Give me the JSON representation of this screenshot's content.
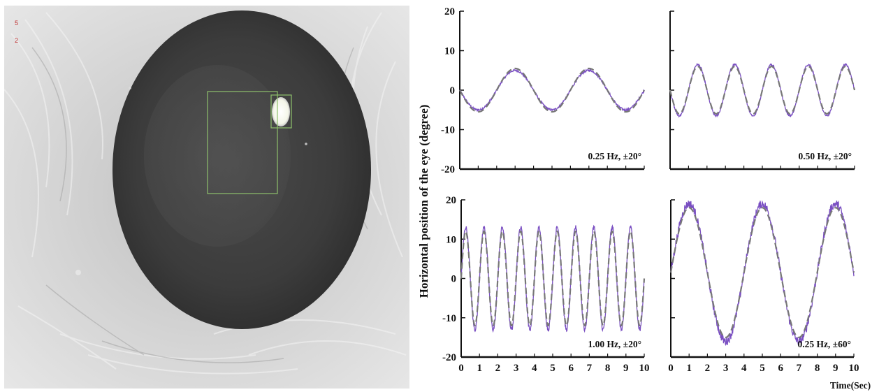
{
  "image": {
    "description_free": true,
    "overlay_numbers": [
      "5",
      "2"
    ],
    "box_color": "#8ec06c",
    "overlay_number_color": "#c03030"
  },
  "chart_data": {
    "ylabel": "Horizontal position of the eye (degree)",
    "xlabel": "Time(Sec)",
    "measured_color": "#7a4fc2",
    "fit_color": "#777777",
    "panels": [
      {
        "type": "line",
        "annotation": "0.25 Hz, ±20°",
        "ylim": [
          -20,
          20
        ],
        "yticks": [
          "20",
          "10",
          "0",
          "-10",
          "-20"
        ],
        "xlim": [
          0,
          10
        ],
        "xticks": [],
        "series": [
          {
            "kind": "measured",
            "amplitude": 5,
            "frequency_hz": 0.25,
            "phase_deg": 180
          },
          {
            "kind": "fit",
            "amplitude": 5.5,
            "frequency_hz": 0.25,
            "phase_deg": 180
          }
        ]
      },
      {
        "type": "line",
        "annotation": "0.50 Hz, ±20°",
        "ylim": [
          -20,
          20
        ],
        "yticks": [],
        "xlim": [
          0,
          10
        ],
        "xticks": [],
        "series": [
          {
            "kind": "measured",
            "amplitude": 6.5,
            "frequency_hz": 0.5,
            "phase_deg": 180
          },
          {
            "kind": "fit",
            "amplitude": 6,
            "frequency_hz": 0.5,
            "phase_deg": 180
          }
        ]
      },
      {
        "type": "line",
        "annotation": "1.00 Hz, ±20°",
        "ylim": [
          -20,
          20
        ],
        "yticks": [
          "20",
          "10",
          "0",
          "-10",
          "-20"
        ],
        "xlim": [
          0,
          10
        ],
        "xticks": [
          "0",
          "1",
          "2",
          "3",
          "4",
          "5",
          "6",
          "7",
          "8",
          "9",
          "10"
        ],
        "series": [
          {
            "kind": "measured",
            "amplitude": 13,
            "frequency_hz": 1.0,
            "phase_deg": 0
          },
          {
            "kind": "fit",
            "amplitude": 12,
            "frequency_hz": 1.0,
            "phase_deg": 0
          }
        ]
      },
      {
        "type": "line",
        "annotation": "0.25 Hz, ±60°",
        "ylim": [
          -20,
          20
        ],
        "yticks": [],
        "xlim": [
          0,
          10
        ],
        "xticks": [
          "0",
          "1",
          "2",
          "3",
          "4",
          "5",
          "6",
          "7",
          "8",
          "9",
          "10"
        ],
        "series": [
          {
            "kind": "measured",
            "amplitude": 17.5,
            "frequency_hz": 0.25,
            "phase_deg": 0,
            "offset": 1.5
          },
          {
            "kind": "fit",
            "amplitude": 16.5,
            "frequency_hz": 0.25,
            "phase_deg": 0,
            "offset": 1.5
          }
        ]
      }
    ]
  }
}
